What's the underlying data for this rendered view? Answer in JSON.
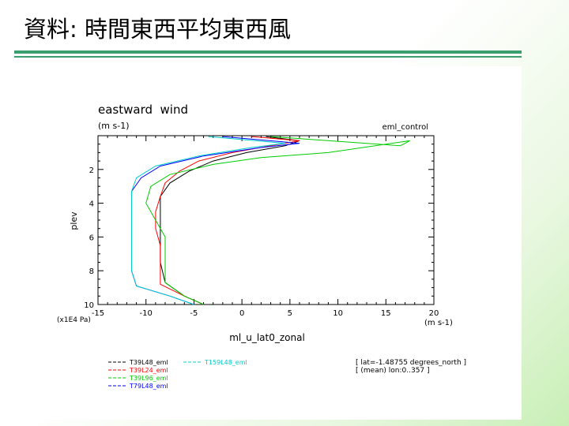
{
  "slide": {
    "title": "資料: 時間東西平均東西風"
  },
  "chart_data": {
    "type": "line",
    "title": "eastward  wind",
    "subtitle": "(m s-1)",
    "corner_label": "eml_control",
    "xlabel": "ml_u_lat0_zonal",
    "xunit": "(m s-1)",
    "ylabel": "plev",
    "yunit": "(x1E4 Pa)",
    "xlim": [
      -15,
      20
    ],
    "ylim": [
      10,
      0
    ],
    "y_inverted": true,
    "xticks": [
      "-15",
      "-10",
      "-5",
      "0",
      "5",
      "10",
      "15",
      "20"
    ],
    "yticks": [
      "2",
      "4",
      "6",
      "8",
      "10"
    ],
    "series": [
      {
        "name": "T39L48_eml",
        "color": "#000000",
        "dash": "solid",
        "x": [
          2.5,
          6.0,
          4.5,
          0.5,
          -3.0,
          -5.5,
          -7.5,
          -8.5,
          -8.5,
          -8.5,
          -8.5,
          -8.5,
          -8.0,
          -6.0,
          -4.0
        ],
        "y": [
          0.05,
          0.3,
          0.6,
          1.0,
          1.5,
          2.1,
          2.8,
          3.6,
          4.5,
          5.5,
          6.5,
          7.5,
          8.7,
          9.5,
          10.0
        ]
      },
      {
        "name": "T39L24_eml",
        "color": "#ff0000",
        "dash": "solid",
        "x": [
          1.0,
          6.0,
          3.0,
          -1.0,
          -4.5,
          -6.5,
          -8.0,
          -8.5,
          -9.0,
          -9.0,
          -8.5,
          -8.5,
          -8.5,
          -6.0,
          -4.0
        ],
        "y": [
          0.05,
          0.3,
          0.6,
          1.0,
          1.5,
          2.1,
          2.8,
          3.6,
          4.5,
          5.5,
          6.5,
          7.5,
          8.8,
          9.5,
          10.0
        ]
      },
      {
        "name": "T39L96_eml",
        "color": "#00cc00",
        "dash": "solid",
        "x": [
          3.0,
          16.5,
          17.5,
          9.0,
          2.0,
          -3.0,
          -7.5,
          -9.5,
          -10.0,
          -9.0,
          -8.0,
          -8.0,
          -8.0,
          -6.0,
          -4.0
        ],
        "y": [
          0.05,
          0.6,
          0.3,
          1.0,
          1.3,
          1.7,
          2.3,
          3.0,
          4.0,
          5.0,
          6.0,
          7.2,
          8.7,
          9.5,
          10.0
        ]
      },
      {
        "name": "T79L48_eml",
        "color": "#0000ff",
        "dash": "solid",
        "x": [
          -2.0,
          6.0,
          2.0,
          -4.0,
          -8.5,
          -10.5,
          -11.5,
          -11.5,
          -11.5,
          -11.5,
          -11.5,
          -11.0,
          -7.5,
          -5.0
        ],
        "y": [
          0.05,
          0.45,
          0.7,
          1.2,
          1.8,
          2.5,
          3.3,
          4.3,
          5.5,
          6.8,
          8.0,
          8.9,
          9.5,
          10.0
        ]
      },
      {
        "name": "T159L48_eml",
        "color": "#00cccc",
        "dash": "solid",
        "x": [
          -3.5,
          4.5,
          1.0,
          -4.5,
          -9.0,
          -11.0,
          -11.5,
          -11.5,
          -11.5,
          -11.5,
          -11.5,
          -11.0,
          -7.5,
          -5.0
        ],
        "y": [
          0.05,
          0.45,
          0.7,
          1.2,
          1.8,
          2.5,
          3.3,
          4.3,
          5.5,
          6.8,
          8.0,
          8.9,
          9.5,
          10.0
        ]
      }
    ],
    "info_lines": [
      "[ lat=-1.48755 degrees_north ]",
      "[ (mean) lon:0..357 ]"
    ]
  }
}
